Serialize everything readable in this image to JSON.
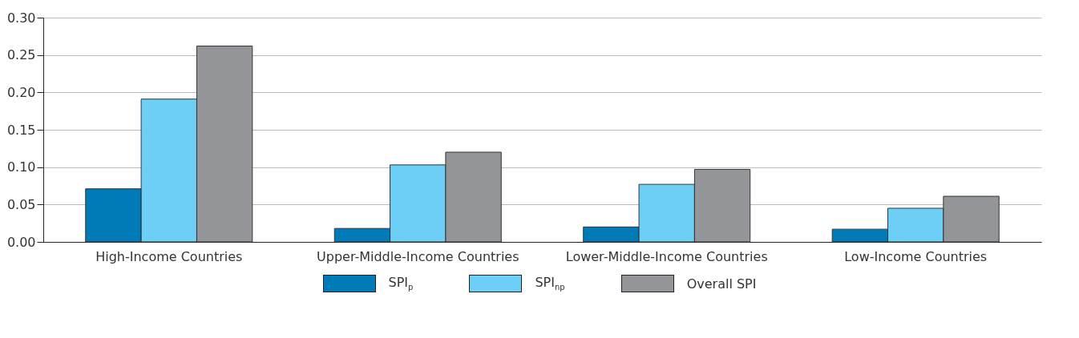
{
  "chart_data": {
    "type": "bar",
    "categories": [
      "High-Income Countries",
      "Upper-Middle-Income Countries",
      "Lower-Middle-Income Countries",
      "Low-Income Countries"
    ],
    "series": [
      {
        "name": "SPI$_{p}$",
        "color": "#007bb8",
        "values": [
          0.071,
          0.018,
          0.02,
          0.017
        ]
      },
      {
        "name": "SPI$_{np}$",
        "color": "#6dcff6",
        "values": [
          0.191,
          0.103,
          0.077,
          0.045
        ]
      },
      {
        "name": "Overall SPI",
        "color": "#939598",
        "values": [
          0.262,
          0.12,
          0.097,
          0.061
        ]
      }
    ],
    "ylim": [
      0,
      0.3
    ],
    "yticks": [
      {
        "value": 0,
        "label": "0.00"
      },
      0.05,
      {
        "value": 0.1,
        "label": "0.10"
      },
      0.15,
      {
        "value": 0.2,
        "label": "0.20"
      },
      0.25,
      {
        "value": 0.3,
        "label": "0.30"
      }
    ],
    "grid": "y",
    "legend": "bottom"
  }
}
